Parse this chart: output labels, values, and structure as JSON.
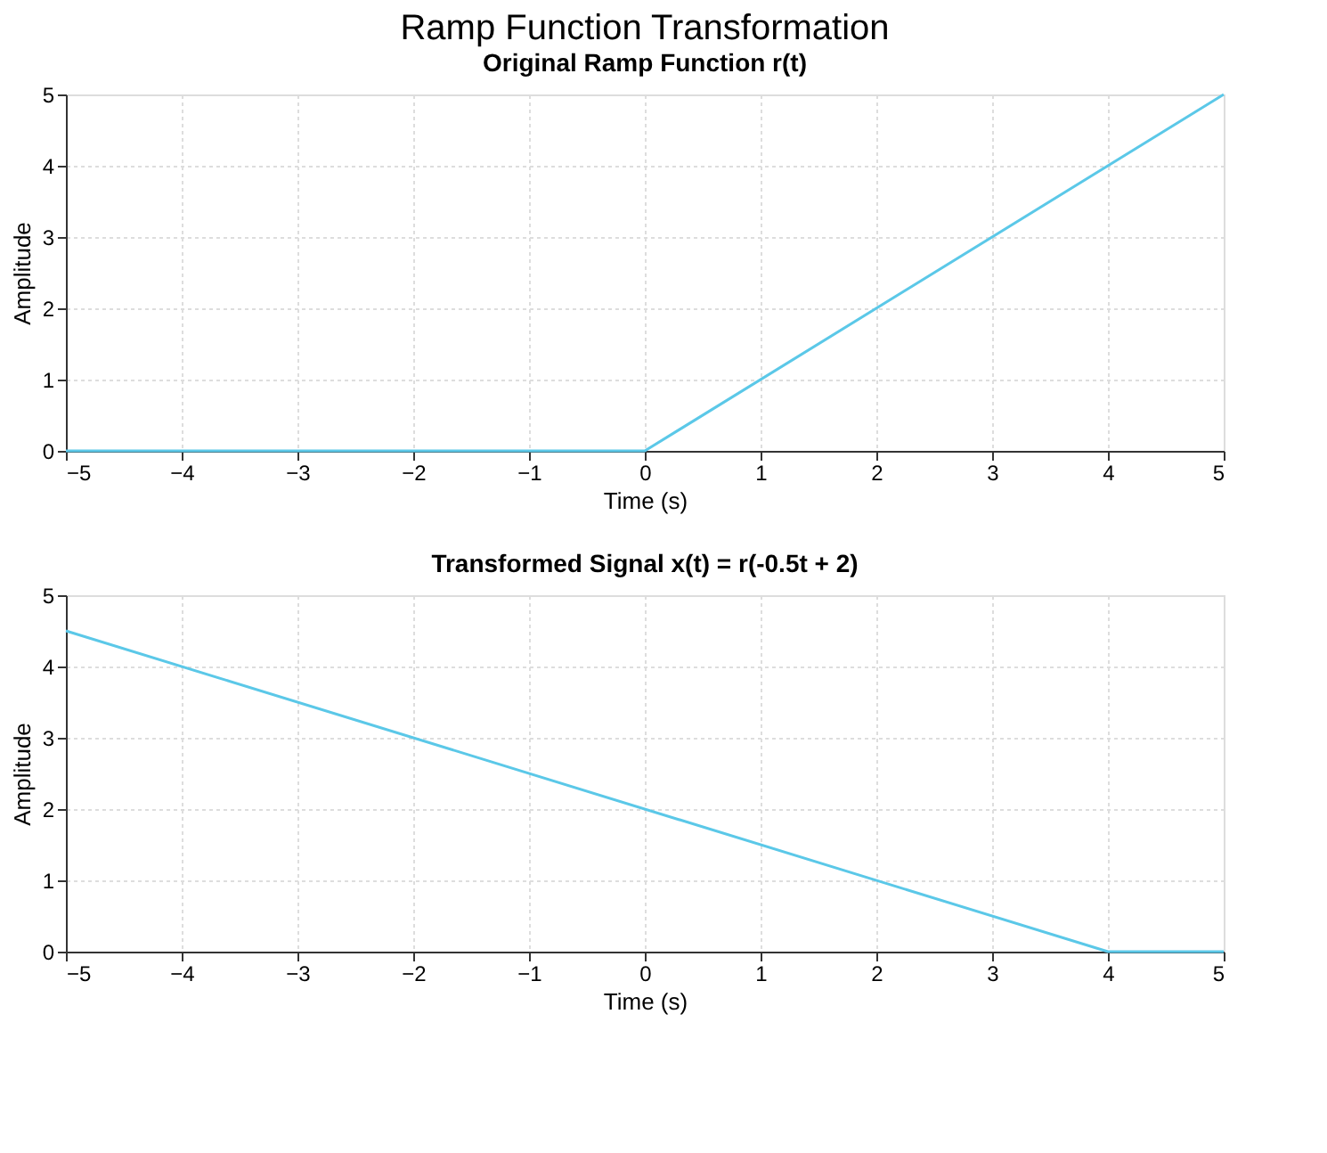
{
  "chart_data": [
    {
      "type": "line",
      "title": "Ramp Function Transformation",
      "subtitle": "Original Ramp Function r(t)",
      "xlabel": "Time (s)",
      "ylabel": "Amplitude",
      "x": [
        -5,
        0,
        5
      ],
      "series": [
        {
          "color": "#5bc8e8",
          "values": [
            0,
            0,
            5
          ]
        }
      ],
      "xlim": [
        -5,
        5
      ],
      "ylim": [
        0,
        5
      ],
      "xticks": [
        -5,
        -4,
        -3,
        -2,
        -1,
        0,
        1,
        2,
        3,
        4,
        5
      ],
      "yticks": [
        0,
        1,
        2,
        3,
        4,
        5
      ],
      "grid": true,
      "line_style": "solid"
    },
    {
      "type": "line",
      "title": "Transformed Signal x(t) = r(-0.5t + 2)",
      "xlabel": "Time (s)",
      "ylabel": "Amplitude",
      "x": [
        -5,
        4,
        5
      ],
      "series": [
        {
          "color": "#5bc8e8",
          "values": [
            4.5,
            0,
            0
          ]
        }
      ],
      "xlim": [
        -5,
        5
      ],
      "ylim": [
        0,
        5
      ],
      "xticks": [
        -5,
        -4,
        -3,
        -2,
        -1,
        0,
        1,
        2,
        3,
        4,
        5
      ],
      "yticks": [
        0,
        1,
        2,
        3,
        4,
        5
      ],
      "grid": true,
      "line_style": "solid"
    }
  ]
}
